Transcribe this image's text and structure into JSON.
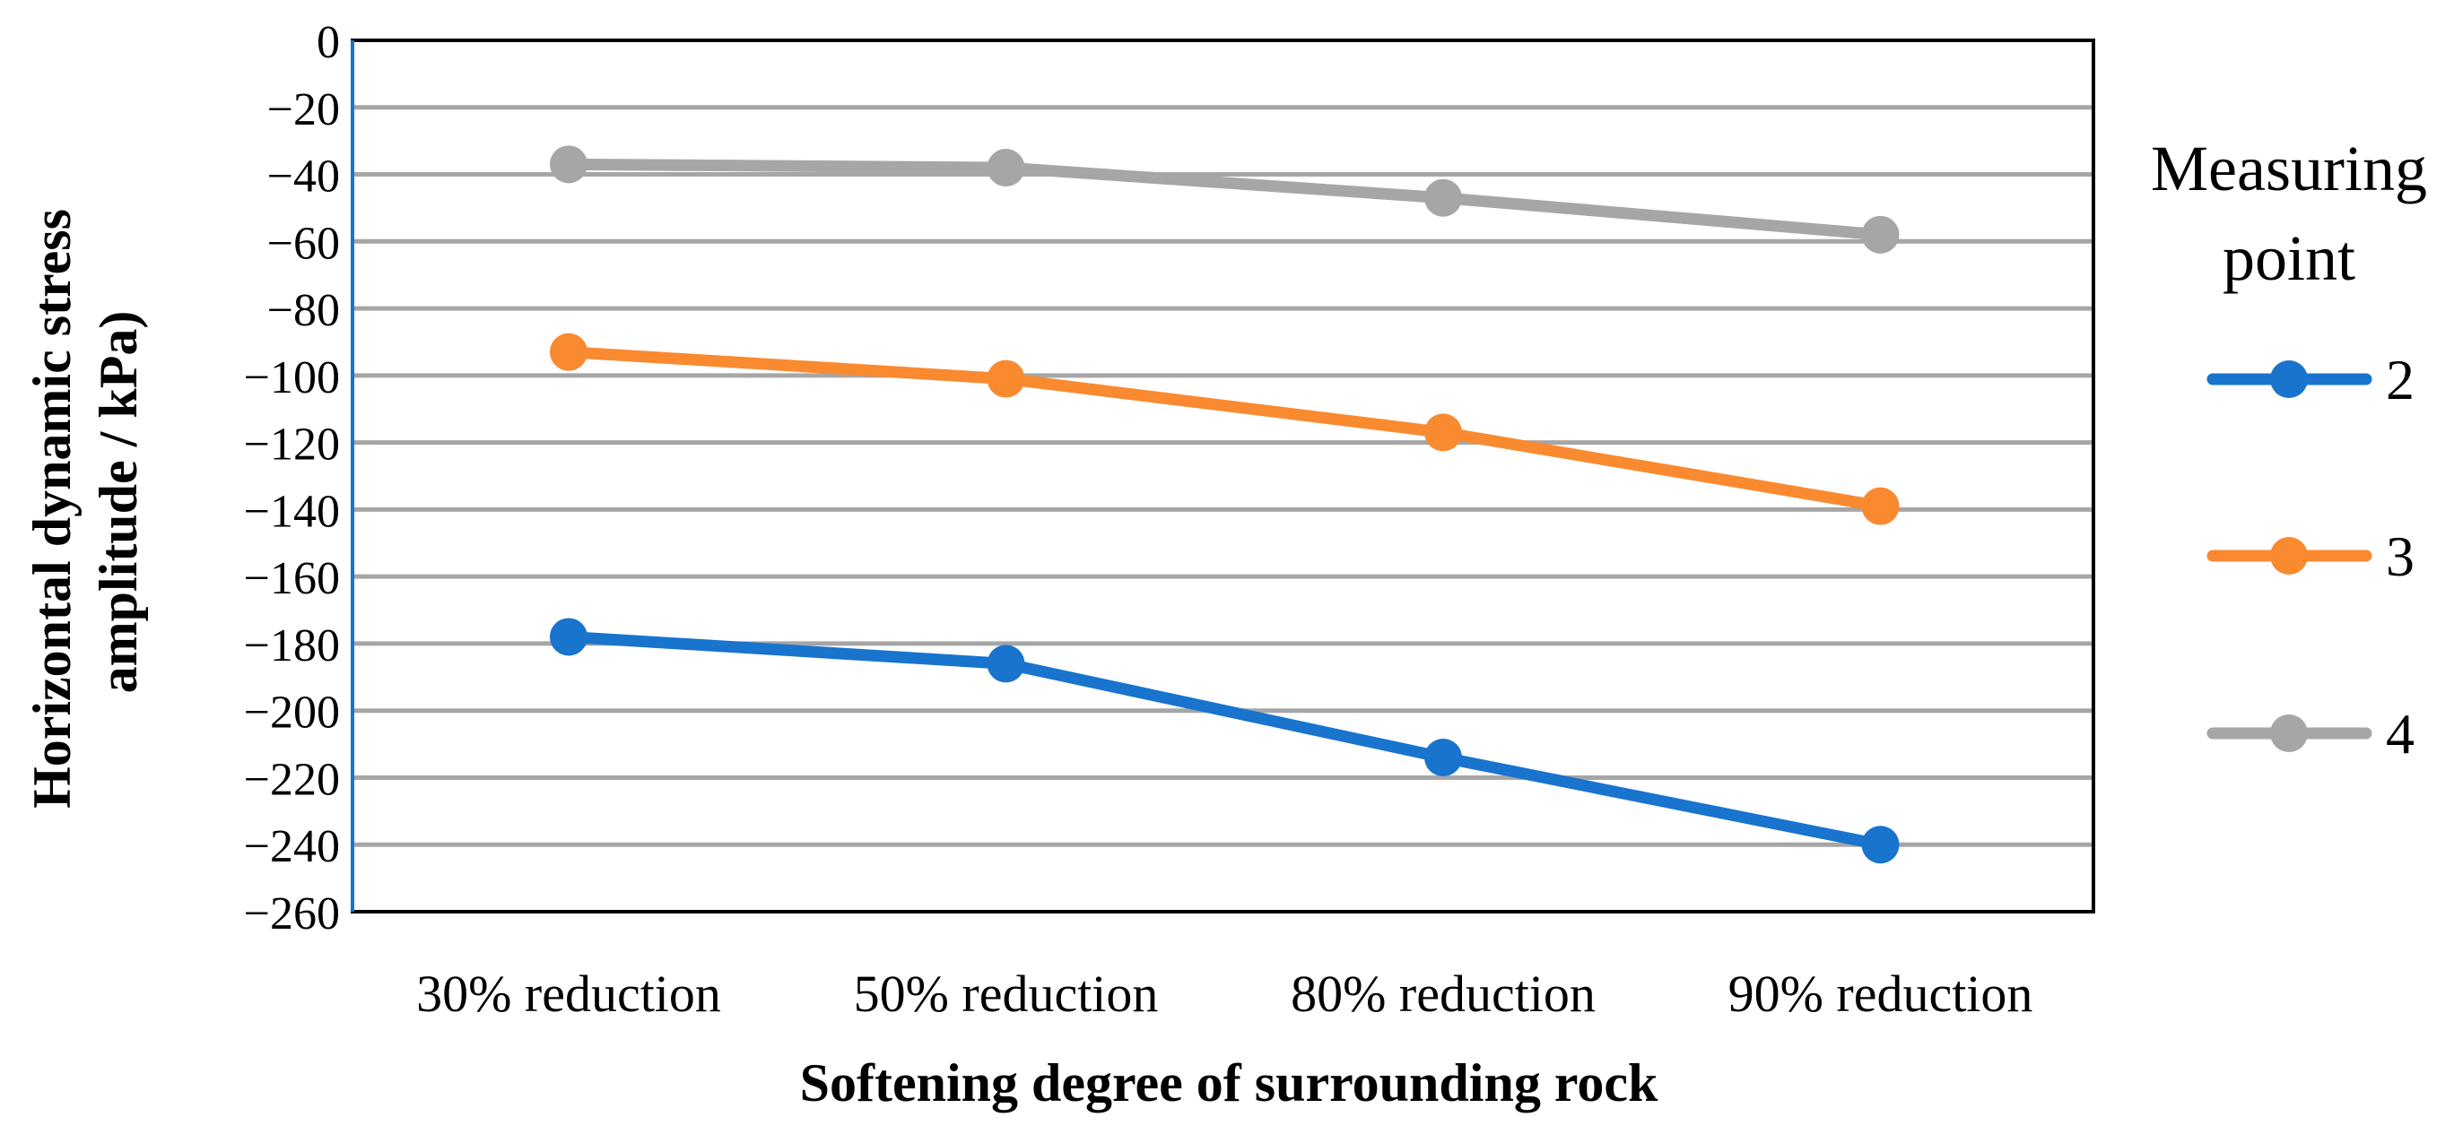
{
  "chart_data": {
    "type": "line",
    "title": "",
    "xlabel": "Softening degree of surrounding rock",
    "ylabel_lines": [
      "Horizontal dynamic stress",
      "amplitude / kPa)"
    ],
    "categories": [
      "30% reduction",
      "50% reduction",
      "80% reduction",
      "90% reduction"
    ],
    "ylim": [
      -260,
      0
    ],
    "yticks": [
      0,
      -20,
      -40,
      -60,
      -80,
      -100,
      -120,
      -140,
      -160,
      -180,
      -200,
      -220,
      -240,
      -260
    ],
    "ytick_labels": [
      "0",
      "−20",
      "−40",
      "−60",
      "−80",
      "−100",
      "−120",
      "−140",
      "−160",
      "−180",
      "−200",
      "−220",
      "−240",
      "−260"
    ],
    "grid": true,
    "legend": {
      "title_lines": [
        "Measuring",
        "point"
      ],
      "placement": "right"
    },
    "series": [
      {
        "name": "2",
        "color": "#1874cd",
        "values": [
          -178,
          -186,
          -214,
          -240
        ]
      },
      {
        "name": "3",
        "color": "#f98a30",
        "values": [
          -93,
          -101,
          -117,
          -139
        ]
      },
      {
        "name": "4",
        "color": "#a6a6a6",
        "values": [
          -37,
          -38,
          -47,
          -58
        ]
      }
    ]
  }
}
